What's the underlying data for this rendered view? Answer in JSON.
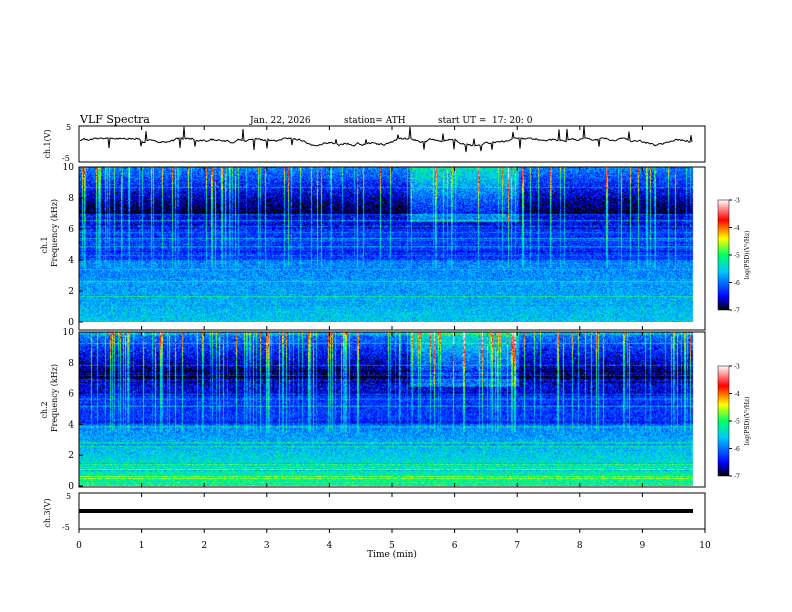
{
  "header": {
    "title": "VLF  Spectra",
    "date": "Jan. 22, 2026",
    "station": "station= ATH",
    "start_label": "start  UT  =",
    "start_time": "17: 20: 0"
  },
  "colors": {
    "colormap": [
      "#000000",
      "#0000ff",
      "#00c8ff",
      "#00ff66",
      "#ffff00",
      "#ff0000",
      "#ffffff"
    ],
    "trace": "#000000"
  },
  "chart_data": [
    {
      "type": "line",
      "panel": "ch1",
      "ylabel": "ch.1(V)",
      "ylim": [
        -5,
        5
      ],
      "ytick_labels": [
        "5",
        "-5"
      ],
      "description": "waveform around -1 V with spikes"
    },
    {
      "type": "heatmap",
      "panel": "ch1-spectrogram",
      "ylabel": "ch.1\nFrequency (kHz)",
      "ylabel_lines": [
        "ch.1",
        "Frequency (kHz)"
      ],
      "ylim": [
        0,
        10
      ],
      "ytick_labels": [
        "0",
        "2",
        "4",
        "6",
        "8",
        "10"
      ],
      "colorbar": {
        "label": "log(PSD)(V²/Hz)",
        "range": [
          -7,
          -3
        ],
        "tick_labels": [
          "-3",
          "-4",
          "-5",
          "-6",
          "-7"
        ]
      }
    },
    {
      "type": "heatmap",
      "panel": "ch2-spectrogram",
      "ylabel": "ch.2\nFrequency (kHz)",
      "ylabel_lines": [
        "ch.2",
        "Frequency (kHz)"
      ],
      "ylim": [
        0,
        10
      ],
      "ytick_labels": [
        "0",
        "2",
        "4",
        "6",
        "8",
        "10"
      ],
      "colorbar": {
        "label": "log(PSD)(V²/Hz)",
        "range": [
          -7,
          -3
        ],
        "tick_labels": [
          "-3",
          "-4",
          "-5",
          "-6",
          "-7"
        ]
      }
    },
    {
      "type": "line",
      "panel": "ch3",
      "ylabel": "ch.3(V)",
      "ylim": [
        -5,
        5
      ],
      "ytick_labels": [
        "5",
        "-5"
      ],
      "description": "flat trace near -1 V"
    }
  ],
  "xaxis": {
    "label": "Time  (min)",
    "xlim": [
      0,
      10
    ],
    "tick_labels": [
      "0",
      "1",
      "2",
      "3",
      "4",
      "5",
      "6",
      "7",
      "8",
      "9",
      "10"
    ]
  }
}
